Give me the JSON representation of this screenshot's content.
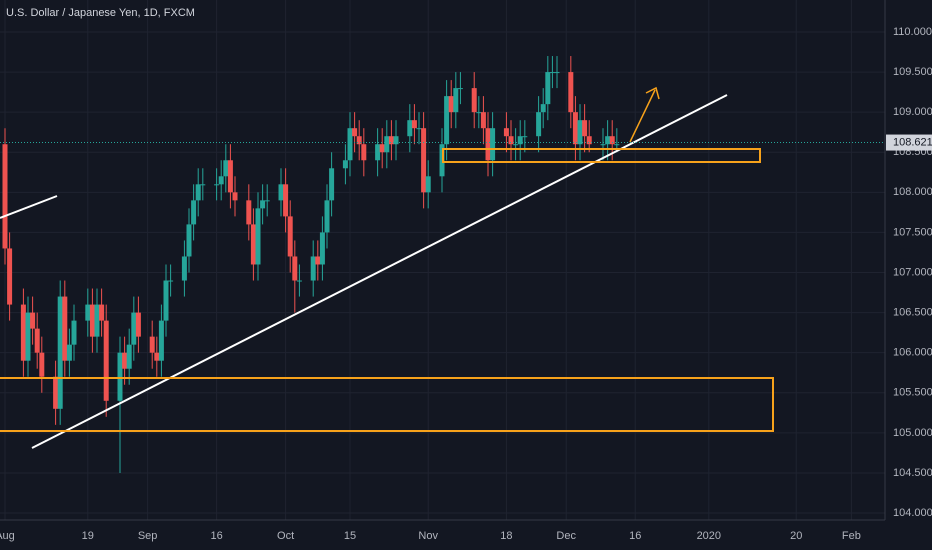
{
  "chart_data": {
    "type": "candlestick",
    "title": "U.S. Dollar / Japanese Yen, 1D, FXCM",
    "up_color": "#26a69a",
    "down_color": "#ef5350",
    "grid": true,
    "last_price": 108.621,
    "xlim": [
      -1.087,
      191.3
    ],
    "ylim": [
      103.913,
      110.399
    ],
    "xticks": [
      {
        "value": 0,
        "label": "Aug"
      },
      {
        "value": 18,
        "label": "19"
      },
      {
        "value": 31,
        "label": "Sep"
      },
      {
        "value": 46,
        "label": "16"
      },
      {
        "value": 61,
        "label": "Oct"
      },
      {
        "value": 75,
        "label": "15"
      },
      {
        "value": 92,
        "label": "Nov"
      },
      {
        "value": 109,
        "label": "18"
      },
      {
        "value": 122,
        "label": "Dec"
      },
      {
        "value": 137,
        "label": "16"
      },
      {
        "value": 153,
        "label": "2020"
      },
      {
        "value": 172,
        "label": "20"
      },
      {
        "value": 184,
        "label": "Feb"
      }
    ],
    "yticks": [
      {
        "value": 104,
        "label": "104.000"
      },
      {
        "value": 104.5,
        "label": "104.500"
      },
      {
        "value": 105,
        "label": "105.000"
      },
      {
        "value": 105.5,
        "label": "105.500"
      },
      {
        "value": 106,
        "label": "106.000"
      },
      {
        "value": 106.5,
        "label": "106.500"
      },
      {
        "value": 107,
        "label": "107.000"
      },
      {
        "value": 107.5,
        "label": "107.500"
      },
      {
        "value": 108,
        "label": "108.000"
      },
      {
        "value": 108.5,
        "label": "108.500"
      },
      {
        "value": 109,
        "label": "109.000"
      },
      {
        "value": 109.5,
        "label": "109.500"
      },
      {
        "value": 110,
        "label": "110.000"
      }
    ],
    "x": [
      0,
      1,
      4,
      5,
      6,
      7,
      8,
      11,
      12,
      13,
      14,
      15,
      18,
      19,
      20,
      21,
      22,
      25,
      26,
      27,
      28,
      29,
      32,
      33,
      34,
      35,
      36,
      39,
      40,
      41,
      42,
      43,
      46,
      47,
      48,
      49,
      50,
      53,
      54,
      55,
      56,
      57,
      60,
      61,
      62,
      63,
      64,
      67,
      68,
      69,
      70,
      71,
      74,
      75,
      76,
      77,
      78,
      81,
      82,
      83,
      84,
      85,
      88,
      89,
      90,
      91,
      92,
      95,
      96,
      97,
      98,
      99,
      102,
      103,
      104,
      105,
      106,
      109,
      110,
      111,
      112,
      113,
      116,
      117,
      118,
      119,
      120,
      123,
      124,
      125,
      126,
      127,
      130,
      131,
      132,
      133
    ],
    "open": [
      108.6,
      107.3,
      106.6,
      105.9,
      106.5,
      106.3,
      106.0,
      105.7,
      105.3,
      106.7,
      105.9,
      106.1,
      106.4,
      106.6,
      106.2,
      106.6,
      106.4,
      105.4,
      106.0,
      105.8,
      106.1,
      106.5,
      106.2,
      106.0,
      105.9,
      106.4,
      106.9,
      106.9,
      107.2,
      107.6,
      107.9,
      108.1,
      108.1,
      108.1,
      108.2,
      108.4,
      108.0,
      107.9,
      107.6,
      107.1,
      107.8,
      107.9,
      107.9,
      108.1,
      107.7,
      107.2,
      106.9,
      106.9,
      107.2,
      107.1,
      107.5,
      107.9,
      108.3,
      108.4,
      108.8,
      108.7,
      108.6,
      108.4,
      108.6,
      108.5,
      108.7,
      108.6,
      108.7,
      108.9,
      108.8,
      108.8,
      108.0,
      108.2,
      108.6,
      109.2,
      109.0,
      109.3,
      109.3,
      109.0,
      109.0,
      108.8,
      108.4,
      108.8,
      108.7,
      108.6,
      108.6,
      108.7,
      108.7,
      109.0,
      109.1,
      109.5,
      109.5,
      109.5,
      109.0,
      108.6,
      108.9,
      108.7,
      108.6,
      108.6,
      108.7,
      108.6
    ],
    "high": [
      108.8,
      107.5,
      106.8,
      106.7,
      106.7,
      106.5,
      106.2,
      105.9,
      106.9,
      106.9,
      106.3,
      106.6,
      106.8,
      106.8,
      106.8,
      106.8,
      106.6,
      106.2,
      106.2,
      106.3,
      106.7,
      106.7,
      106.4,
      106.2,
      106.6,
      107.1,
      107.1,
      107.4,
      107.8,
      108.1,
      108.3,
      108.3,
      108.3,
      108.4,
      108.6,
      108.6,
      108.2,
      108.1,
      107.8,
      108.0,
      108.1,
      108.1,
      108.3,
      108.3,
      107.9,
      107.4,
      107.1,
      107.4,
      107.4,
      107.7,
      108.1,
      108.5,
      108.6,
      109.0,
      109.0,
      108.9,
      108.8,
      108.8,
      108.8,
      108.9,
      108.9,
      108.9,
      109.1,
      109.1,
      109.0,
      109.0,
      108.4,
      108.8,
      109.4,
      109.4,
      109.5,
      109.5,
      109.5,
      109.2,
      109.2,
      109.0,
      109.0,
      109.0,
      108.9,
      108.8,
      108.9,
      108.9,
      109.2,
      109.3,
      109.7,
      109.7,
      109.7,
      109.7,
      109.2,
      109.1,
      109.1,
      108.9,
      108.8,
      108.9,
      108.9,
      108.8
    ],
    "low": [
      107.1,
      106.4,
      105.7,
      105.7,
      106.1,
      105.8,
      105.5,
      105.1,
      105.1,
      105.7,
      105.7,
      105.9,
      106.2,
      106.0,
      106.0,
      106.2,
      105.2,
      104.5,
      105.6,
      105.6,
      105.9,
      106.0,
      105.8,
      105.7,
      105.7,
      106.2,
      106.7,
      106.7,
      107.0,
      107.4,
      107.7,
      107.9,
      107.9,
      107.9,
      108.0,
      107.8,
      107.7,
      107.4,
      106.9,
      106.9,
      107.6,
      107.7,
      107.7,
      107.5,
      107.0,
      106.5,
      106.7,
      106.7,
      106.9,
      106.9,
      107.3,
      107.7,
      108.1,
      108.2,
      108.5,
      108.4,
      108.2,
      108.2,
      108.3,
      108.3,
      108.4,
      108.4,
      108.5,
      108.6,
      108.6,
      107.8,
      107.8,
      108.0,
      108.4,
      108.8,
      108.8,
      109.1,
      108.8,
      108.8,
      108.6,
      108.2,
      108.2,
      108.5,
      108.4,
      108.4,
      108.4,
      108.5,
      108.5,
      108.8,
      108.9,
      109.3,
      109.3,
      108.8,
      108.4,
      108.4,
      108.5,
      108.5,
      108.4,
      108.4,
      108.4,
      108.5
    ],
    "close": [
      107.3,
      106.6,
      105.9,
      106.5,
      106.3,
      106.0,
      105.7,
      105.3,
      106.7,
      105.9,
      106.1,
      106.4,
      106.6,
      106.2,
      106.6,
      106.4,
      105.4,
      106.0,
      105.8,
      106.1,
      106.5,
      106.2,
      106.0,
      105.9,
      106.4,
      106.9,
      106.9,
      107.2,
      107.6,
      107.9,
      108.1,
      108.1,
      108.1,
      108.2,
      108.4,
      108.0,
      107.9,
      107.6,
      107.1,
      107.8,
      107.9,
      107.9,
      108.1,
      107.7,
      107.2,
      106.9,
      106.9,
      107.2,
      107.1,
      107.5,
      107.9,
      108.3,
      108.4,
      108.8,
      108.7,
      108.6,
      108.4,
      108.6,
      108.5,
      108.7,
      108.6,
      108.7,
      108.9,
      108.8,
      108.8,
      108.0,
      108.2,
      108.6,
      109.2,
      109.0,
      109.3,
      109.3,
      109.0,
      109.0,
      108.8,
      108.4,
      108.8,
      108.7,
      108.6,
      108.6,
      108.7,
      108.7,
      109.0,
      109.1,
      109.5,
      109.5,
      109.5,
      109.0,
      108.6,
      108.9,
      108.7,
      108.6,
      108.6,
      108.7,
      108.6,
      108.6
    ]
  }
}
